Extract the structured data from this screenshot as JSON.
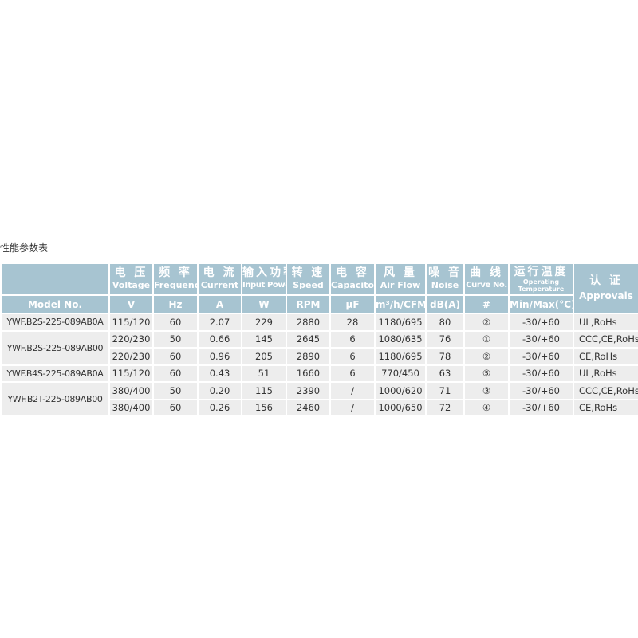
{
  "title": "性能参数表",
  "headers": [
    {
      "cn": "电 压",
      "en": "Voltage",
      "unit": "V"
    },
    {
      "cn": "频 率",
      "en": "Frequency",
      "unit": "Hz"
    },
    {
      "cn": "电 流",
      "en": "Current",
      "unit": "A"
    },
    {
      "cn": "输入功率",
      "en": "Input Power",
      "unit": "W"
    },
    {
      "cn": "转 速",
      "en": "Speed",
      "unit": "RPM"
    },
    {
      "cn": "电 容",
      "en": "Capacitor",
      "unit": "µF"
    },
    {
      "cn": "风 量",
      "en": "Air Flow",
      "unit": "m³/h/CFM"
    },
    {
      "cn": "噪 音",
      "en": "Noise",
      "unit": "dB(A)"
    },
    {
      "cn": "曲 线",
      "en": "Curve No.",
      "unit": "#"
    },
    {
      "cn": "运行温度",
      "en": "Operating Temperature",
      "unit": "Min/Max(°C)"
    }
  ],
  "model_header": "Model No.",
  "approvals_header": {
    "cn": "认 证",
    "en": "Approvals"
  },
  "models": [
    "YWF.B2S-225-089AB0A",
    "YWF.B2S-225-089AB00",
    "YWF.B4S-225-089AB0A",
    "YWF.B2T-225-089AB00"
  ],
  "rows": [
    [
      "115/120",
      "60",
      "2.07",
      "229",
      "2880",
      "28",
      "1180/695",
      "80",
      "②",
      "-30/+60",
      "UL,RoHs"
    ],
    [
      "220/230",
      "50",
      "0.66",
      "145",
      "2645",
      "6",
      "1080/635",
      "76",
      "①",
      "-30/+60",
      "CCC,CE,RoHs"
    ],
    [
      "220/230",
      "60",
      "0.96",
      "205",
      "2890",
      "6",
      "1180/695",
      "78",
      "②",
      "-30/+60",
      "CE,RoHs"
    ],
    [
      "115/120",
      "60",
      "0.43",
      "51",
      "1660",
      "6",
      "770/450",
      "63",
      "⑤",
      "-30/+60",
      "UL,RoHs"
    ],
    [
      "380/400",
      "50",
      "0.20",
      "115",
      "2390",
      "/",
      "1000/620",
      "71",
      "③",
      "-30/+60",
      "CCC,CE,RoHs"
    ],
    [
      "380/400",
      "60",
      "0.26",
      "156",
      "2460",
      "/",
      "1000/650",
      "72",
      "④",
      "-30/+60",
      "CE,RoHs"
    ]
  ]
}
